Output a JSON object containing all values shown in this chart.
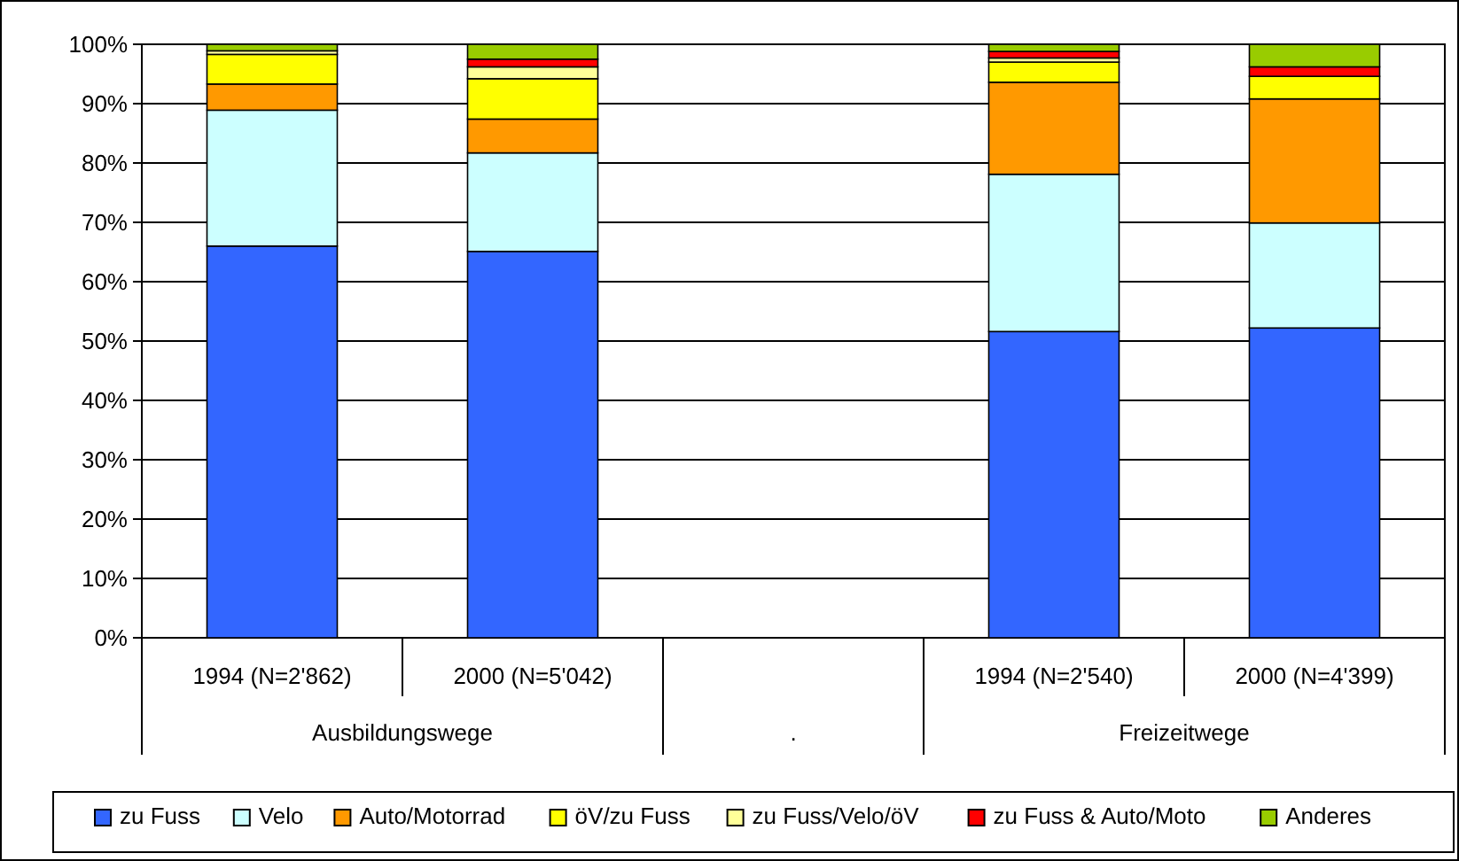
{
  "chart_data": {
    "type": "bar",
    "stacked": true,
    "categories": [
      "1994 (N=2'862)",
      "2000 (N=5'042)",
      null,
      "1994 (N=2'540)",
      "2000 (N=4'399)"
    ],
    "annotations": [
      "Ausbildungswege",
      ".",
      "Freizeitwege"
    ],
    "ylim": [
      0,
      100
    ],
    "yticks": [
      {
        "value": 0,
        "label": "0%"
      },
      {
        "value": 10,
        "label": "10%"
      },
      {
        "value": 20,
        "label": "20%"
      },
      {
        "value": 30,
        "label": "30%"
      },
      {
        "value": 40,
        "label": "40%"
      },
      {
        "value": 50,
        "label": "50%"
      },
      {
        "value": 60,
        "label": "60%"
      },
      {
        "value": 70,
        "label": "70%"
      },
      {
        "value": 80,
        "label": "80%"
      },
      {
        "value": 90,
        "label": "90%"
      },
      {
        "value": 100,
        "label": "100%"
      }
    ],
    "grid": "y",
    "legend": "bottom",
    "series": [
      {
        "name": "zu Fuss",
        "color": "#3366ff",
        "values": [
          66,
          65.1,
          null,
          51.6,
          52.2
        ]
      },
      {
        "name": "Velo",
        "color": "#ccffff",
        "values": [
          22.9,
          16.6,
          null,
          26.5,
          17.7
        ]
      },
      {
        "name": "Auto/Motorrad",
        "color": "#ff9900",
        "values": [
          4.4,
          5.7,
          null,
          15.5,
          20.9
        ]
      },
      {
        "name": "öV/zu Fuss",
        "color": "#ffff00",
        "values": [
          5,
          6.8,
          null,
          3.4,
          3.8
        ]
      },
      {
        "name": "zu Fuss/Velo/öV",
        "color": "#ffff99",
        "values": [
          0.6,
          2,
          null,
          0.7,
          null
        ]
      },
      {
        "name": "zu Fuss & Auto/Moto",
        "color": "#ff0000",
        "values": [
          null,
          1.3,
          null,
          1.1,
          1.6
        ]
      },
      {
        "name": "Anderes",
        "color": "#99cc00",
        "values": [
          1.1,
          2.5,
          null,
          1.2,
          3.8
        ]
      }
    ]
  }
}
